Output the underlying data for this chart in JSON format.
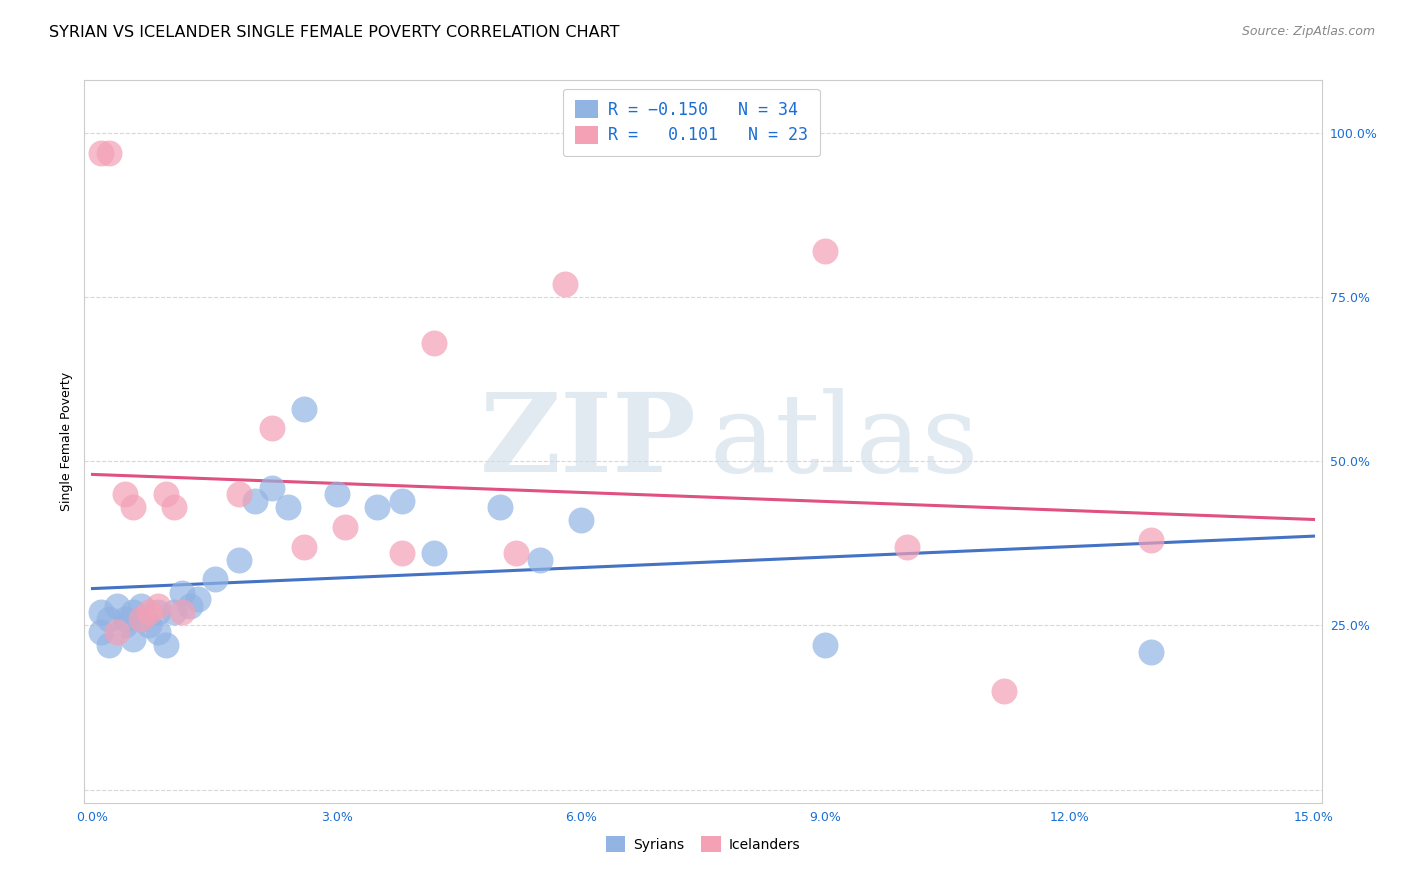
{
  "title": "SYRIAN VS ICELANDER SINGLE FEMALE POVERTY CORRELATION CHART",
  "source": "Source: ZipAtlas.com",
  "ylabel": "Single Female Poverty",
  "yticks": [
    0.0,
    0.25,
    0.5,
    0.75,
    1.0
  ],
  "ytick_labels": [
    "",
    "25.0%",
    "50.0%",
    "75.0%",
    "100.0%"
  ],
  "xticks": [
    0.0,
    0.03,
    0.06,
    0.09,
    0.12,
    0.15
  ],
  "xtick_labels": [
    "0.0%",
    "3.0%",
    "6.0%",
    "9.0%",
    "12.0%",
    "15.0%"
  ],
  "xlim": [
    -0.001,
    0.151
  ],
  "ylim": [
    -0.02,
    1.08
  ],
  "syrians_color": "#92b4e3",
  "icelanders_color": "#f4a0b5",
  "trend_syrians_color": "#4472c4",
  "trend_icelanders_color": "#e05080",
  "legend_text_color": "#1a6fd4",
  "syrians_R": -0.15,
  "syrians_N": 34,
  "icelanders_R": 0.101,
  "icelanders_N": 23,
  "syrians_x": [
    0.001,
    0.001,
    0.002,
    0.002,
    0.003,
    0.004,
    0.004,
    0.005,
    0.005,
    0.006,
    0.006,
    0.007,
    0.008,
    0.008,
    0.009,
    0.01,
    0.011,
    0.012,
    0.013,
    0.015,
    0.018,
    0.02,
    0.022,
    0.024,
    0.026,
    0.03,
    0.035,
    0.038,
    0.042,
    0.05,
    0.055,
    0.06,
    0.09,
    0.13
  ],
  "syrians_y": [
    0.27,
    0.24,
    0.26,
    0.22,
    0.28,
    0.26,
    0.25,
    0.27,
    0.23,
    0.26,
    0.28,
    0.25,
    0.27,
    0.24,
    0.22,
    0.27,
    0.3,
    0.28,
    0.29,
    0.32,
    0.35,
    0.44,
    0.46,
    0.43,
    0.58,
    0.45,
    0.43,
    0.44,
    0.36,
    0.43,
    0.35,
    0.41,
    0.22,
    0.21
  ],
  "icelanders_x": [
    0.001,
    0.002,
    0.003,
    0.004,
    0.005,
    0.006,
    0.007,
    0.008,
    0.009,
    0.01,
    0.011,
    0.018,
    0.022,
    0.026,
    0.031,
    0.038,
    0.042,
    0.052,
    0.058,
    0.09,
    0.1,
    0.112,
    0.13
  ],
  "icelanders_y": [
    0.97,
    0.97,
    0.24,
    0.45,
    0.43,
    0.26,
    0.27,
    0.28,
    0.45,
    0.43,
    0.27,
    0.45,
    0.55,
    0.37,
    0.4,
    0.36,
    0.68,
    0.36,
    0.77,
    0.82,
    0.37,
    0.15,
    0.38
  ],
  "background_color": "#ffffff",
  "grid_color": "#d8d8d8",
  "axis_color": "#cccccc",
  "title_fontsize": 11.5,
  "source_fontsize": 9,
  "label_fontsize": 9,
  "tick_fontsize": 9,
  "legend_fontsize": 12
}
